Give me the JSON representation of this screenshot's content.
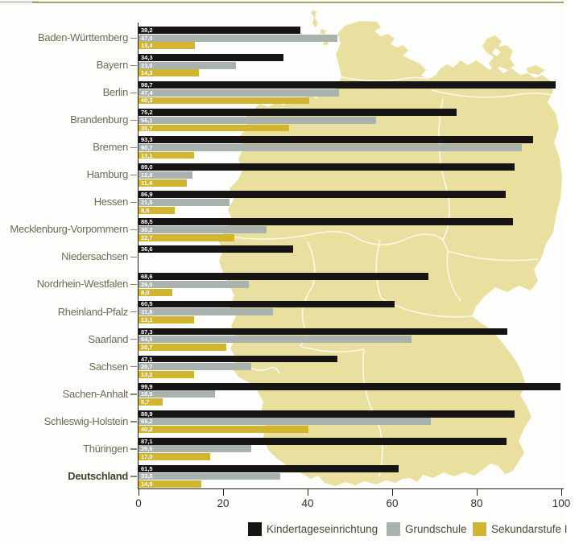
{
  "chart_data": {
    "type": "bar",
    "orientation": "horizontal",
    "title": "",
    "xlabel": "",
    "ylabel": "",
    "xlim": [
      0,
      100
    ],
    "grid": false,
    "x_ticks": [
      0,
      20,
      40,
      60,
      80,
      100
    ],
    "x_tick_labels": [
      "0",
      "20",
      "40",
      "60",
      "80",
      "100"
    ],
    "series": [
      "Kindertageseinrichtung",
      "Grundschule",
      "Sekundarstufe I"
    ],
    "series_colors": [
      "#171513",
      "#a9b2ad",
      "#d2b52e"
    ],
    "categories": [
      "Baden-Württemberg",
      "Bayern",
      "Berlin",
      "Brandenburg",
      "Bremen",
      "Hamburg",
      "Hessen",
      "Mecklenburg-Vorpommern",
      "Niedersachsen",
      "Nordrhein-Westfalen",
      "Rheinland-Pfalz",
      "Saarland",
      "Sachsen",
      "Sachen-Anhalt",
      "Schleswig-Holstein",
      "Thüringen",
      "Deutschland"
    ],
    "bold_category": "Deutschland",
    "values": [
      [
        38.2,
        47.0,
        13.4
      ],
      [
        34.3,
        23.0,
        14.3
      ],
      [
        98.7,
        47.4,
        40.3
      ],
      [
        75.2,
        56.1,
        35.7
      ],
      [
        93.3,
        90.7,
        13.1
      ],
      [
        89.0,
        12.8,
        11.4
      ],
      [
        86.9,
        21.5,
        8.6
      ],
      [
        88.5,
        30.2,
        22.7
      ],
      [
        36.6,
        null,
        null
      ],
      [
        68.6,
        26.0,
        8.0
      ],
      [
        60.5,
        31.8,
        13.1
      ],
      [
        87.3,
        64.5,
        20.7
      ],
      [
        47.1,
        26.7,
        13.2
      ],
      [
        99.9,
        18.0,
        5.7
      ],
      [
        88.9,
        69.2,
        40.2
      ],
      [
        87.1,
        26.6,
        17.0
      ],
      [
        61.5,
        33.6,
        14.9
      ]
    ],
    "value_labels": [
      [
        "38,2",
        "47,0",
        "13,4"
      ],
      [
        "34,3",
        "23,0",
        "14,3"
      ],
      [
        "98,7",
        "47,4",
        "40,3"
      ],
      [
        "75,2",
        "56,1",
        "35,7"
      ],
      [
        "93,3",
        "90,7",
        "13,1"
      ],
      [
        "89,0",
        "12,8",
        "11,4"
      ],
      [
        "86,9",
        "21,5",
        "8,6"
      ],
      [
        "88,5",
        "30,2",
        "22,7"
      ],
      [
        "36,6",
        null,
        null
      ],
      [
        "68,6",
        "26,0",
        "8,0"
      ],
      [
        "60,5",
        "31,8",
        "13,1"
      ],
      [
        "87,3",
        "64,5",
        "20,7"
      ],
      [
        "47,1",
        "26,7",
        "13,2"
      ],
      [
        "99,9",
        "18,0",
        "5,7"
      ],
      [
        "88,9",
        "69,2",
        "40,2"
      ],
      [
        "87,1",
        "26,6",
        "17,0"
      ],
      [
        "61,5",
        "33,6",
        "14,9"
      ]
    ],
    "legend_position": "bottom"
  },
  "legend": {
    "items": [
      {
        "label": "Kindertageseinrichtung",
        "color": "#171513"
      },
      {
        "label": "Grundschule",
        "color": "#a9b2ad"
      },
      {
        "label": "Sekundarstufe I",
        "color": "#d2b52e"
      }
    ]
  },
  "map": {
    "name": "deutschland-karte",
    "fill": "#e9e0a0",
    "border_color": "#fbf8ec"
  },
  "colors": {
    "axis": "#24221b",
    "category_label": "#6f6a54",
    "bold_category_label": "#45402f",
    "tick_label": "#34312a",
    "legend_label": "#4c4737",
    "value_label": "#ffffff",
    "top_rule": "#aba06a"
  }
}
